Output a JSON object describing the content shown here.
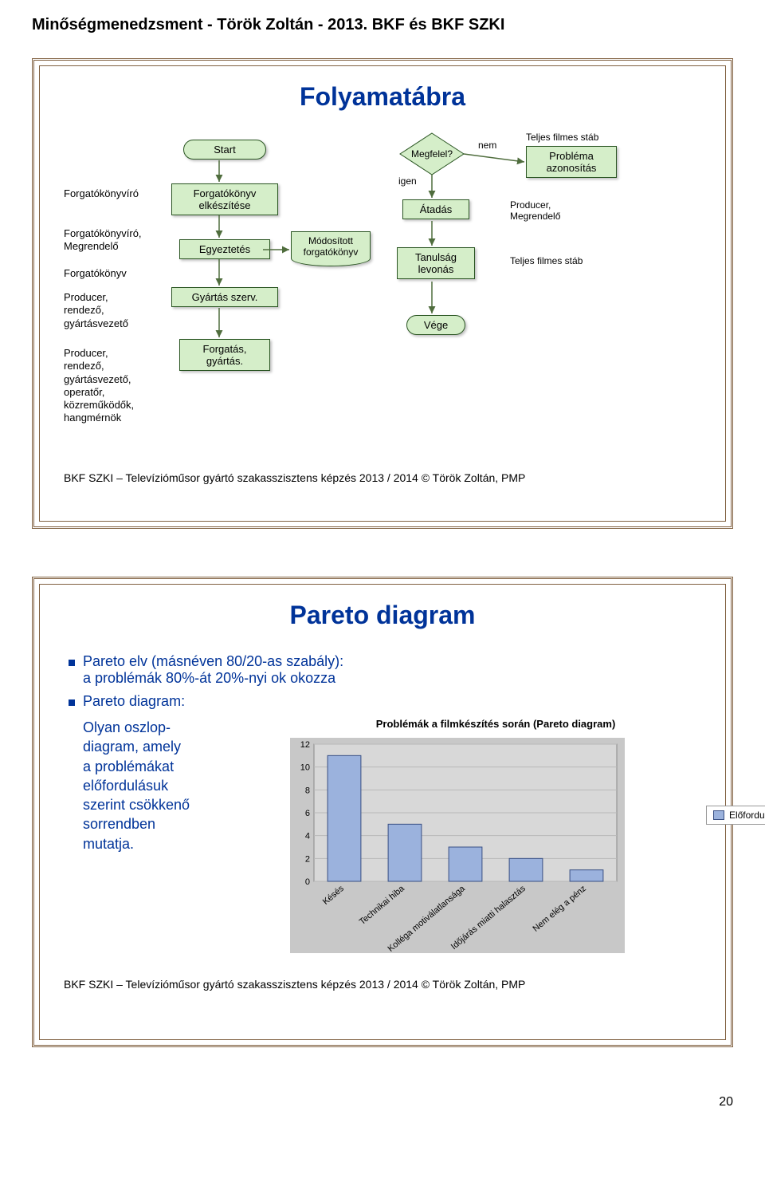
{
  "page_header": "Minőségmenedzsment - Török Zoltán - 2013. BKF és BKF SZKI",
  "page_number": "20",
  "slide_footer": "BKF SZKI – Televízióműsor gyártó szakasszisztens képzés   2013 / 2014     ©     Török Zoltán, PMP",
  "slide1": {
    "title": "Folyamatábra",
    "roles": {
      "r1": "Forgatókönyvíró",
      "r2": "Forgatókönyvíró,\nMegrendelő",
      "r3": "Forgatókönyv",
      "r4": "Producer,\nrendező,\ngyártásvezető",
      "r5": "Producer,\nrendező,\ngyártásvezető,\noperatőr,\nközreműködők,\nhangmérnök"
    },
    "boxes": {
      "start": "Start",
      "elkeszites": "Forgatókönyv\nelkészítése",
      "egyeztetes": "Egyeztetés",
      "modositott": "Módosított\nforgatókönyv",
      "gyartas_szerv": "Gyártás szerv.",
      "forgatas": "Forgatás,\ngyártás.",
      "megfelel": "Megfelel?",
      "igen": "igen",
      "nem": "nem",
      "atadas": "Átadás",
      "tanulsag": "Tanulság\nlevonás",
      "vege": "Vége",
      "teljes_stab_hdr": "Teljes filmes stáb",
      "problema": "Probléma\nazonosítás",
      "producer_meg": "Producer,\nMegrendelő",
      "teljes_stab2": "Teljes filmes stáb"
    },
    "colors": {
      "box_fill": "#d5eec9",
      "box_stroke": "#2a5522",
      "arrow": "#4f6d3d"
    }
  },
  "slide2": {
    "title": "Pareto diagram",
    "bullets": {
      "b1": "Pareto elv (másnéven 80/20-as szabály):",
      "b1_sub": "a problémák 80%-át 20%-nyi ok okozza",
      "b2": "Pareto diagram:",
      "left_desc": "Olyan oszlop-\ndiagram, amely\na problémákat\nelőfordulásuk\nszerint csökkenő\nsorrendben\nmutatja."
    },
    "chart": {
      "type": "bar",
      "title": "Problémák a filmkészítés során (Pareto diagram)",
      "categories": [
        "Késés",
        "Technikai hiba",
        "Kolléga motiválatlansága",
        "Időjárás miatti halasztás",
        "Nem elég a pénz"
      ],
      "values": [
        11,
        5,
        3,
        2,
        1
      ],
      "bar_color": "#9bb2dd",
      "bar_border": "#384f83",
      "ylim": [
        0,
        12
      ],
      "ytick_step": 2,
      "yticks": [
        "0",
        "2",
        "4",
        "6",
        "8",
        "10",
        "12"
      ],
      "grid_color": "#b8b8b8",
      "plot_bg": "#d8d8d8",
      "outer_bg": "#c8c8c8",
      "legend_label": "Előfordulás",
      "bar_width": 0.55
    }
  }
}
